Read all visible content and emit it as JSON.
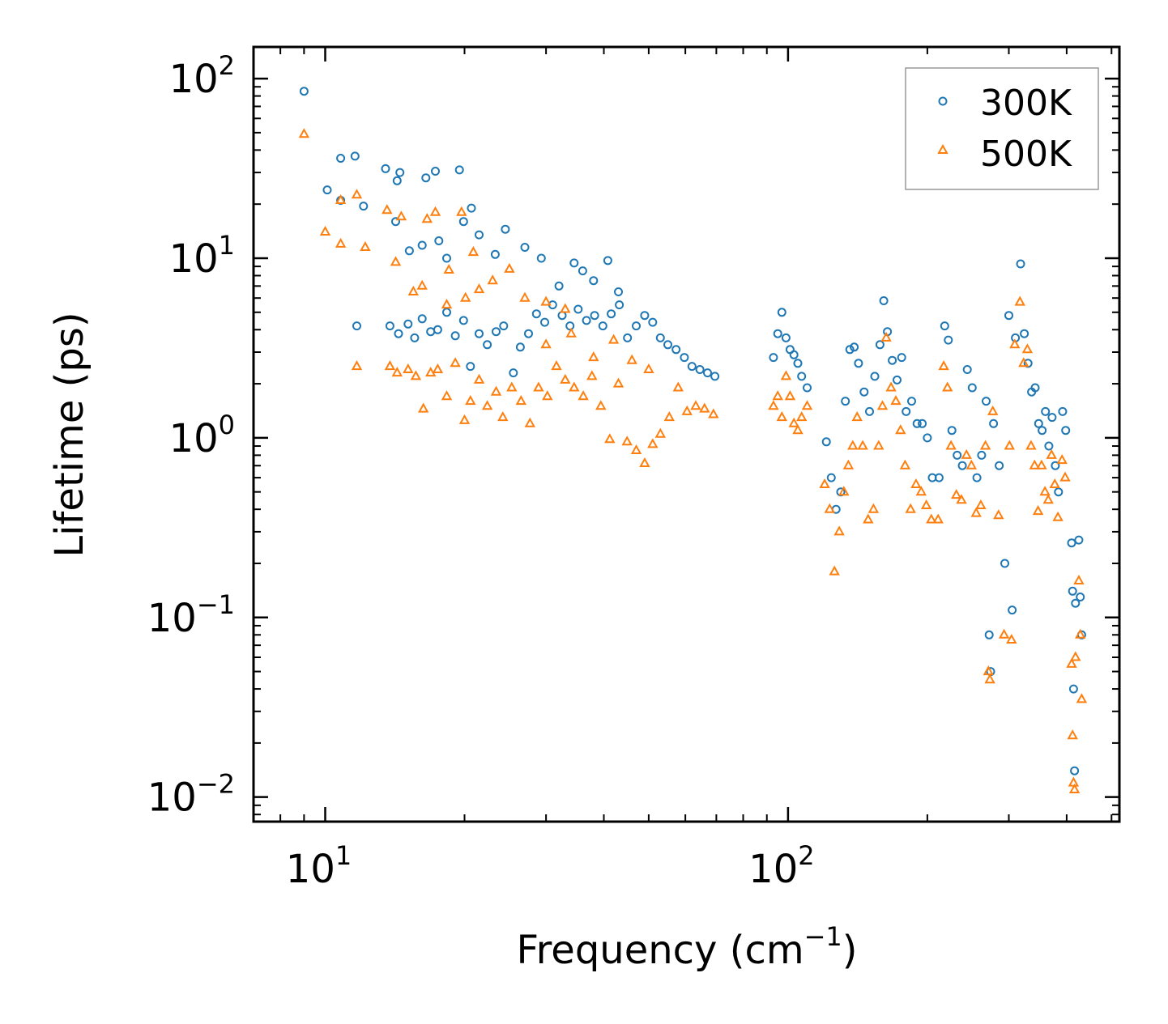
{
  "chart_data": {
    "type": "scatter",
    "x_scale": "log",
    "y_scale": "log",
    "xlabel": "Frequency (cm",
    "xlabel_sup": "−1",
    "xlabel_tail": ")",
    "ylabel": "Lifetime (ps)",
    "xlim": [
      7,
      520
    ],
    "ylim": [
      0.0073,
      150
    ],
    "x_ticks": [
      {
        "value": 10,
        "base": "10",
        "exp": "1"
      },
      {
        "value": 100,
        "base": "10",
        "exp": "2"
      }
    ],
    "y_ticks": [
      {
        "value": 0.01,
        "base": "10",
        "exp": "−2"
      },
      {
        "value": 0.1,
        "base": "10",
        "exp": "−1"
      },
      {
        "value": 1,
        "base": "10",
        "exp": "0"
      },
      {
        "value": 10,
        "base": "10",
        "exp": "1"
      },
      {
        "value": 100,
        "base": "10",
        "exp": "2"
      }
    ],
    "legend_position": "top-right",
    "series": [
      {
        "name": "300K",
        "marker": "circle",
        "color": "#1f77b4",
        "points": [
          [
            9,
            85
          ],
          [
            10.1,
            24
          ],
          [
            10.8,
            36
          ],
          [
            11.6,
            37
          ],
          [
            10.8,
            21
          ],
          [
            12.1,
            19.5
          ],
          [
            13.5,
            31.5
          ],
          [
            14.5,
            30
          ],
          [
            14.3,
            27
          ],
          [
            16.5,
            28
          ],
          [
            17.3,
            30.5
          ],
          [
            19.5,
            31
          ],
          [
            14.2,
            16
          ],
          [
            15.2,
            11
          ],
          [
            16.2,
            11.8
          ],
          [
            17.6,
            12.5
          ],
          [
            18.3,
            10
          ],
          [
            19.9,
            16
          ],
          [
            20.7,
            19
          ],
          [
            21.5,
            13.5
          ],
          [
            23.3,
            10.5
          ],
          [
            24.5,
            14.5
          ],
          [
            27,
            11.5
          ],
          [
            29.3,
            10
          ],
          [
            34.5,
            9.4
          ],
          [
            40.8,
            9.7
          ],
          [
            36,
            8.5
          ],
          [
            32,
            7
          ],
          [
            38,
            7.5
          ],
          [
            43,
            6.5
          ],
          [
            11.7,
            4.2
          ],
          [
            13.8,
            4.2
          ],
          [
            14.4,
            3.8
          ],
          [
            15.1,
            4.3
          ],
          [
            15.6,
            3.6
          ],
          [
            16.2,
            4.6
          ],
          [
            16.9,
            3.9
          ],
          [
            17.5,
            4
          ],
          [
            18.3,
            5
          ],
          [
            19.1,
            3.7
          ],
          [
            19.9,
            4.5
          ],
          [
            20.6,
            2.5
          ],
          [
            21.5,
            3.8
          ],
          [
            22.4,
            3.3
          ],
          [
            23.4,
            3.9
          ],
          [
            24.3,
            4.2
          ],
          [
            25.5,
            2.3
          ],
          [
            26.4,
            3.2
          ],
          [
            27.5,
            3.8
          ],
          [
            28.6,
            4.9
          ],
          [
            29.8,
            4.4
          ],
          [
            31,
            5.5
          ],
          [
            32.5,
            4.8
          ],
          [
            33.8,
            4.2
          ],
          [
            35.2,
            5.2
          ],
          [
            36.7,
            4.5
          ],
          [
            38.2,
            4.8
          ],
          [
            39.8,
            4.2
          ],
          [
            41.5,
            4.9
          ],
          [
            43.2,
            5.5
          ],
          [
            45,
            3.6
          ],
          [
            47,
            4.2
          ],
          [
            49,
            4.8
          ],
          [
            51,
            4.4
          ],
          [
            53,
            3.6
          ],
          [
            55,
            3.3
          ],
          [
            57.3,
            3.1
          ],
          [
            59.7,
            2.8
          ],
          [
            62,
            2.5
          ],
          [
            64.5,
            2.4
          ],
          [
            67,
            2.3
          ],
          [
            69.5,
            2.2
          ],
          [
            93,
            2.8
          ],
          [
            95,
            3.8
          ],
          [
            97,
            5
          ],
          [
            99,
            3.6
          ],
          [
            101,
            3.1
          ],
          [
            103,
            2.9
          ],
          [
            105,
            2.6
          ],
          [
            107,
            2.2
          ],
          [
            110,
            1.9
          ],
          [
            121,
            0.95
          ],
          [
            124,
            0.6
          ],
          [
            127,
            0.4
          ],
          [
            130,
            0.5
          ],
          [
            133,
            1.6
          ],
          [
            136,
            3.1
          ],
          [
            139,
            3.2
          ],
          [
            142,
            2.6
          ],
          [
            146,
            1.8
          ],
          [
            150,
            1.4
          ],
          [
            154,
            2.2
          ],
          [
            158,
            3.3
          ],
          [
            161,
            5.8
          ],
          [
            164,
            3.9
          ],
          [
            168,
            2.7
          ],
          [
            172,
            2.1
          ],
          [
            176,
            2.8
          ],
          [
            180,
            1.4
          ],
          [
            185,
            1.6
          ],
          [
            190,
            1.2
          ],
          [
            195,
            1.2
          ],
          [
            200,
            1
          ],
          [
            205,
            0.6
          ],
          [
            212,
            0.6
          ],
          [
            218,
            4.2
          ],
          [
            222,
            3.5
          ],
          [
            226,
            1.1
          ],
          [
            232,
            0.8
          ],
          [
            238,
            0.7
          ],
          [
            244,
            2.4
          ],
          [
            250,
            1.9
          ],
          [
            256,
            0.6
          ],
          [
            262,
            0.8
          ],
          [
            268,
            1.6
          ],
          [
            272,
            0.08
          ],
          [
            274,
            0.05
          ],
          [
            278,
            1.2
          ],
          [
            286,
            0.7
          ],
          [
            294,
            0.2
          ],
          [
            300,
            4.8
          ],
          [
            305,
            0.11
          ],
          [
            310,
            3.6
          ],
          [
            318,
            9.3
          ],
          [
            324,
            3.8
          ],
          [
            330,
            2.6
          ],
          [
            336,
            1.8
          ],
          [
            342,
            1.9
          ],
          [
            348,
            1.2
          ],
          [
            354,
            1.1
          ],
          [
            360,
            1.4
          ],
          [
            366,
            0.9
          ],
          [
            372,
            1.3
          ],
          [
            378,
            0.7
          ],
          [
            384,
            0.5
          ],
          [
            392,
            1.4
          ],
          [
            398,
            1.1
          ],
          [
            410,
            0.26
          ],
          [
            412,
            0.14
          ],
          [
            414,
            0.04
          ],
          [
            416,
            0.014
          ],
          [
            418,
            0.12
          ],
          [
            425,
            0.27
          ],
          [
            428,
            0.13
          ],
          [
            431,
            0.08
          ]
        ]
      },
      {
        "name": "500K",
        "marker": "triangle",
        "color": "#ff7f0e",
        "points": [
          [
            9,
            49
          ],
          [
            10,
            14
          ],
          [
            10.8,
            21
          ],
          [
            10.8,
            12
          ],
          [
            11.7,
            22.5
          ],
          [
            12.2,
            11.5
          ],
          [
            13.6,
            18.5
          ],
          [
            14.2,
            9.5
          ],
          [
            14.6,
            17
          ],
          [
            15.5,
            6.5
          ],
          [
            16.2,
            7
          ],
          [
            16.6,
            16.5
          ],
          [
            17.3,
            18
          ],
          [
            18.3,
            5.5
          ],
          [
            18.5,
            8.6
          ],
          [
            19.7,
            18
          ],
          [
            20.1,
            6
          ],
          [
            20.9,
            10.8
          ],
          [
            21.5,
            6.7
          ],
          [
            23,
            7.5
          ],
          [
            25,
            8.7
          ],
          [
            27,
            6
          ],
          [
            30,
            5.7
          ],
          [
            33,
            5.2
          ],
          [
            11.7,
            2.5
          ],
          [
            13.8,
            2.5
          ],
          [
            14.3,
            2.3
          ],
          [
            15.1,
            2.4
          ],
          [
            15.7,
            2.2
          ],
          [
            16.3,
            1.45
          ],
          [
            16.9,
            2.3
          ],
          [
            17.5,
            2.4
          ],
          [
            18.3,
            1.7
          ],
          [
            19.1,
            2.6
          ],
          [
            20,
            1.25
          ],
          [
            20.6,
            1.6
          ],
          [
            21.5,
            2.1
          ],
          [
            22.4,
            1.5
          ],
          [
            23.4,
            1.8
          ],
          [
            24.2,
            1.3
          ],
          [
            25.3,
            1.9
          ],
          [
            26.5,
            1.6
          ],
          [
            27.7,
            1.2
          ],
          [
            28.9,
            1.9
          ],
          [
            30.2,
            1.7
          ],
          [
            31.6,
            2.5
          ],
          [
            33,
            2.1
          ],
          [
            34.5,
            1.9
          ],
          [
            36.1,
            1.7
          ],
          [
            37.7,
            2.2
          ],
          [
            39.4,
            1.5
          ],
          [
            41.2,
            0.98
          ],
          [
            43,
            2
          ],
          [
            44.9,
            0.95
          ],
          [
            47,
            0.85
          ],
          [
            49,
            0.72
          ],
          [
            51,
            0.92
          ],
          [
            53,
            1.05
          ],
          [
            55.4,
            1.3
          ],
          [
            57.9,
            1.9
          ],
          [
            60.5,
            1.4
          ],
          [
            63.2,
            1.5
          ],
          [
            66,
            1.45
          ],
          [
            69,
            1.35
          ],
          [
            30,
            3.3
          ],
          [
            34,
            3.8
          ],
          [
            38,
            2.8
          ],
          [
            42,
            3.5
          ],
          [
            46,
            2.7
          ],
          [
            50,
            2.4
          ],
          [
            93,
            1.5
          ],
          [
            95,
            1.7
          ],
          [
            97,
            1.3
          ],
          [
            99,
            2.2
          ],
          [
            101,
            1.7
          ],
          [
            103,
            1.2
          ],
          [
            105,
            1.1
          ],
          [
            107,
            1.3
          ],
          [
            110,
            1.5
          ],
          [
            120,
            0.55
          ],
          [
            123,
            0.4
          ],
          [
            126,
            0.18
          ],
          [
            129,
            0.3
          ],
          [
            132,
            0.5
          ],
          [
            135,
            0.7
          ],
          [
            138,
            0.9
          ],
          [
            141,
            1.3
          ],
          [
            145,
            0.9
          ],
          [
            149,
            0.35
          ],
          [
            153,
            0.4
          ],
          [
            157,
            0.9
          ],
          [
            160,
            1.5
          ],
          [
            163,
            3.6
          ],
          [
            167,
            1.9
          ],
          [
            171,
            1.6
          ],
          [
            175,
            1.1
          ],
          [
            179,
            0.7
          ],
          [
            184,
            0.4
          ],
          [
            189,
            0.55
          ],
          [
            194,
            0.5
          ],
          [
            199,
            0.42
          ],
          [
            204,
            0.35
          ],
          [
            211,
            0.35
          ],
          [
            217,
            2.5
          ],
          [
            221,
            1.9
          ],
          [
            225,
            0.9
          ],
          [
            231,
            0.48
          ],
          [
            237,
            0.45
          ],
          [
            243,
            0.8
          ],
          [
            249,
            0.7
          ],
          [
            255,
            0.38
          ],
          [
            261,
            0.42
          ],
          [
            267,
            0.9
          ],
          [
            271,
            0.05
          ],
          [
            273,
            0.045
          ],
          [
            277,
            1.4
          ],
          [
            285,
            0.37
          ],
          [
            293,
            0.08
          ],
          [
            301,
            0.9
          ],
          [
            304,
            0.075
          ],
          [
            309,
            3.3
          ],
          [
            317,
            5.7
          ],
          [
            323,
            2.6
          ],
          [
            329,
            3.1
          ],
          [
            335,
            0.9
          ],
          [
            341,
            0.7
          ],
          [
            347,
            0.39
          ],
          [
            353,
            0.7
          ],
          [
            359,
            0.5
          ],
          [
            365,
            0.45
          ],
          [
            371,
            0.8
          ],
          [
            377,
            0.55
          ],
          [
            383,
            0.36
          ],
          [
            391,
            0.75
          ],
          [
            397,
            0.6
          ],
          [
            410,
            0.055
          ],
          [
            412,
            0.022
          ],
          [
            414,
            0.012
          ],
          [
            416,
            0.011
          ],
          [
            418,
            0.06
          ],
          [
            425,
            0.16
          ],
          [
            428,
            0.08
          ],
          [
            431,
            0.035
          ]
        ]
      }
    ]
  }
}
